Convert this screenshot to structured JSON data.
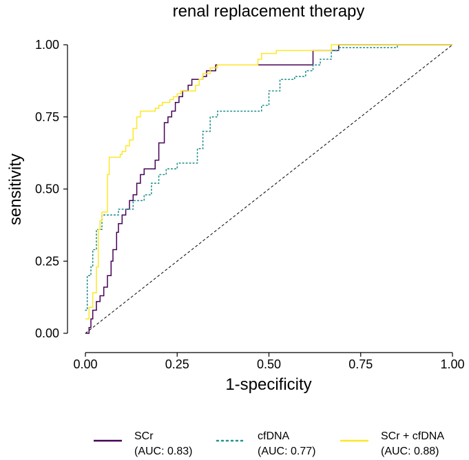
{
  "chart_data": {
    "type": "line",
    "title": "renal replacement therapy",
    "xlabel": "1-specificity",
    "ylabel": "sensitivity",
    "xlim": [
      0,
      1
    ],
    "ylim": [
      0,
      1
    ],
    "x_ticks": [
      "0.00",
      "0.25",
      "0.50",
      "0.75",
      "1.00"
    ],
    "y_ticks": [
      "0.00",
      "0.25",
      "0.50",
      "0.75",
      "1.00"
    ],
    "x_tick_values": [
      0,
      0.25,
      0.5,
      0.75,
      1
    ],
    "y_tick_values": [
      0,
      0.25,
      0.5,
      0.75,
      1
    ],
    "grid": false,
    "legend_position": "bottom",
    "reference_line": {
      "from": [
        0,
        0
      ],
      "to": [
        1,
        1
      ],
      "style": "dashed",
      "color": "#000000"
    },
    "series": [
      {
        "name": "SCr",
        "auc_label": "(AUC: 0.83)",
        "color": "#440154",
        "style": "solid",
        "points": [
          [
            0,
            0
          ],
          [
            0.01,
            0
          ],
          [
            0.01,
            0.02
          ],
          [
            0.015,
            0.02
          ],
          [
            0.015,
            0.05
          ],
          [
            0.02,
            0.05
          ],
          [
            0.02,
            0.08
          ],
          [
            0.03,
            0.08
          ],
          [
            0.03,
            0.11
          ],
          [
            0.04,
            0.11
          ],
          [
            0.04,
            0.13
          ],
          [
            0.05,
            0.13
          ],
          [
            0.05,
            0.16
          ],
          [
            0.06,
            0.16
          ],
          [
            0.06,
            0.2
          ],
          [
            0.07,
            0.2
          ],
          [
            0.07,
            0.25
          ],
          [
            0.075,
            0.25
          ],
          [
            0.075,
            0.29
          ],
          [
            0.085,
            0.29
          ],
          [
            0.085,
            0.35
          ],
          [
            0.09,
            0.35
          ],
          [
            0.09,
            0.38
          ],
          [
            0.1,
            0.38
          ],
          [
            0.1,
            0.41
          ],
          [
            0.11,
            0.41
          ],
          [
            0.11,
            0.43
          ],
          [
            0.12,
            0.43
          ],
          [
            0.12,
            0.46
          ],
          [
            0.13,
            0.46
          ],
          [
            0.13,
            0.48
          ],
          [
            0.14,
            0.48
          ],
          [
            0.14,
            0.52
          ],
          [
            0.15,
            0.52
          ],
          [
            0.15,
            0.55
          ],
          [
            0.16,
            0.55
          ],
          [
            0.16,
            0.57
          ],
          [
            0.19,
            0.57
          ],
          [
            0.19,
            0.6
          ],
          [
            0.2,
            0.6
          ],
          [
            0.2,
            0.66
          ],
          [
            0.215,
            0.66
          ],
          [
            0.215,
            0.73
          ],
          [
            0.225,
            0.73
          ],
          [
            0.225,
            0.75
          ],
          [
            0.235,
            0.75
          ],
          [
            0.235,
            0.77
          ],
          [
            0.245,
            0.77
          ],
          [
            0.245,
            0.8
          ],
          [
            0.255,
            0.8
          ],
          [
            0.255,
            0.82
          ],
          [
            0.265,
            0.82
          ],
          [
            0.265,
            0.84
          ],
          [
            0.28,
            0.84
          ],
          [
            0.28,
            0.86
          ],
          [
            0.29,
            0.86
          ],
          [
            0.29,
            0.88
          ],
          [
            0.32,
            0.88
          ],
          [
            0.32,
            0.89
          ],
          [
            0.33,
            0.89
          ],
          [
            0.33,
            0.91
          ],
          [
            0.355,
            0.91
          ],
          [
            0.355,
            0.93
          ],
          [
            0.38,
            0.93
          ],
          [
            0.62,
            0.93
          ],
          [
            0.62,
            0.98
          ],
          [
            0.69,
            0.98
          ],
          [
            0.69,
            1
          ],
          [
            1,
            1
          ]
        ]
      },
      {
        "name": "cfDNA",
        "auc_label": "(AUC: 0.77)",
        "color": "#21908C",
        "style": "dotted",
        "points": [
          [
            0,
            0.08
          ],
          [
            0.005,
            0.08
          ],
          [
            0.005,
            0.2
          ],
          [
            0.015,
            0.2
          ],
          [
            0.015,
            0.23
          ],
          [
            0.02,
            0.23
          ],
          [
            0.02,
            0.29
          ],
          [
            0.03,
            0.29
          ],
          [
            0.03,
            0.36
          ],
          [
            0.045,
            0.36
          ],
          [
            0.045,
            0.41
          ],
          [
            0.09,
            0.41
          ],
          [
            0.09,
            0.43
          ],
          [
            0.13,
            0.43
          ],
          [
            0.13,
            0.46
          ],
          [
            0.16,
            0.46
          ],
          [
            0.16,
            0.48
          ],
          [
            0.18,
            0.48
          ],
          [
            0.18,
            0.52
          ],
          [
            0.2,
            0.52
          ],
          [
            0.2,
            0.55
          ],
          [
            0.22,
            0.55
          ],
          [
            0.22,
            0.57
          ],
          [
            0.25,
            0.57
          ],
          [
            0.25,
            0.59
          ],
          [
            0.305,
            0.59
          ],
          [
            0.305,
            0.64
          ],
          [
            0.32,
            0.64
          ],
          [
            0.32,
            0.7
          ],
          [
            0.34,
            0.7
          ],
          [
            0.34,
            0.75
          ],
          [
            0.36,
            0.75
          ],
          [
            0.36,
            0.77
          ],
          [
            0.48,
            0.77
          ],
          [
            0.48,
            0.79
          ],
          [
            0.5,
            0.79
          ],
          [
            0.5,
            0.84
          ],
          [
            0.53,
            0.84
          ],
          [
            0.53,
            0.88
          ],
          [
            0.57,
            0.88
          ],
          [
            0.57,
            0.89
          ],
          [
            0.6,
            0.89
          ],
          [
            0.6,
            0.91
          ],
          [
            0.62,
            0.91
          ],
          [
            0.62,
            0.93
          ],
          [
            0.64,
            0.93
          ],
          [
            0.64,
            0.95
          ],
          [
            0.67,
            0.95
          ],
          [
            0.67,
            0.98
          ],
          [
            0.69,
            0.98
          ],
          [
            0.69,
            0.99
          ],
          [
            0.73,
            0.99
          ],
          [
            0.78,
            0.99
          ],
          [
            0.85,
            0.99
          ],
          [
            0.85,
            1
          ],
          [
            1,
            1
          ]
        ]
      },
      {
        "name": "SCr + cfDNA",
        "auc_label": "(AUC: 0.88)",
        "color": "#FDE725",
        "style": "solid",
        "points": [
          [
            0,
            0.05
          ],
          [
            0.01,
            0.05
          ],
          [
            0.01,
            0.09
          ],
          [
            0.02,
            0.09
          ],
          [
            0.02,
            0.14
          ],
          [
            0.03,
            0.14
          ],
          [
            0.03,
            0.23
          ],
          [
            0.035,
            0.23
          ],
          [
            0.035,
            0.36
          ],
          [
            0.04,
            0.36
          ],
          [
            0.04,
            0.39
          ],
          [
            0.045,
            0.39
          ],
          [
            0.045,
            0.42
          ],
          [
            0.06,
            0.42
          ],
          [
            0.06,
            0.55
          ],
          [
            0.065,
            0.55
          ],
          [
            0.065,
            0.61
          ],
          [
            0.095,
            0.61
          ],
          [
            0.095,
            0.62
          ],
          [
            0.1,
            0.62
          ],
          [
            0.1,
            0.63
          ],
          [
            0.11,
            0.63
          ],
          [
            0.11,
            0.65
          ],
          [
            0.12,
            0.65
          ],
          [
            0.12,
            0.67
          ],
          [
            0.13,
            0.67
          ],
          [
            0.13,
            0.71
          ],
          [
            0.14,
            0.71
          ],
          [
            0.14,
            0.75
          ],
          [
            0.15,
            0.75
          ],
          [
            0.15,
            0.77
          ],
          [
            0.19,
            0.77
          ],
          [
            0.19,
            0.78
          ],
          [
            0.2,
            0.78
          ],
          [
            0.2,
            0.79
          ],
          [
            0.21,
            0.79
          ],
          [
            0.21,
            0.8
          ],
          [
            0.23,
            0.8
          ],
          [
            0.23,
            0.81
          ],
          [
            0.24,
            0.81
          ],
          [
            0.24,
            0.82
          ],
          [
            0.25,
            0.82
          ],
          [
            0.25,
            0.83
          ],
          [
            0.26,
            0.83
          ],
          [
            0.26,
            0.84
          ],
          [
            0.3,
            0.84
          ],
          [
            0.3,
            0.86
          ],
          [
            0.31,
            0.86
          ],
          [
            0.31,
            0.88
          ],
          [
            0.32,
            0.88
          ],
          [
            0.32,
            0.9
          ],
          [
            0.34,
            0.9
          ],
          [
            0.34,
            0.92
          ],
          [
            0.36,
            0.92
          ],
          [
            0.36,
            0.93
          ],
          [
            0.47,
            0.93
          ],
          [
            0.47,
            0.95
          ],
          [
            0.48,
            0.95
          ],
          [
            0.48,
            0.97
          ],
          [
            0.52,
            0.97
          ],
          [
            0.52,
            0.98
          ],
          [
            0.62,
            0.98
          ],
          [
            0.62,
            0.98
          ],
          [
            0.67,
            0.98
          ],
          [
            0.67,
            1
          ],
          [
            1,
            1
          ]
        ]
      }
    ]
  }
}
